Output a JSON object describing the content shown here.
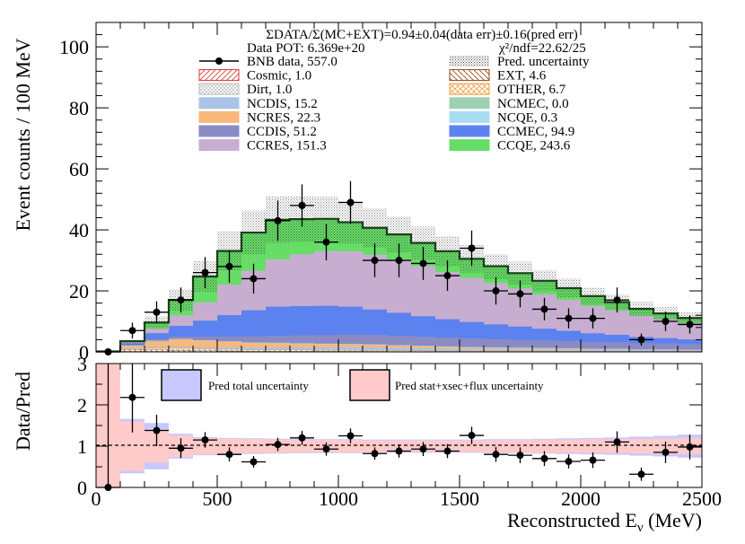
{
  "chart_data": [
    {
      "type": "stacked-histogram",
      "header": {
        "ratio_line": "ΣDATA/Σ(MC+EXT)=0.94±0.04(data err)±0.16(pred err)",
        "pot": "Data POT: 6.369e+20",
        "chi2": "χ²/ndf=22.62/25"
      },
      "ylabel": "Event counts / 100 MeV",
      "ylim": [
        0,
        108
      ],
      "yticks": [
        0,
        20,
        40,
        60,
        80,
        100
      ],
      "xlim": [
        0,
        2500
      ],
      "bin_width": 100,
      "bin_edges": [
        0,
        100,
        200,
        300,
        400,
        500,
        600,
        700,
        800,
        900,
        1000,
        1100,
        1200,
        1300,
        1400,
        1500,
        1600,
        1700,
        1800,
        1900,
        2000,
        2100,
        2200,
        2300,
        2400,
        2500
      ],
      "legend": [
        {
          "key": "data",
          "label": "BNB data, 557.0",
          "color": "#000000"
        },
        {
          "key": "pred_unc",
          "label": "Pred. uncertainty",
          "color": "#888888"
        },
        {
          "key": "cosmic",
          "label": "Cosmic, 1.0",
          "color": "#e03030"
        },
        {
          "key": "ext",
          "label": "EXT, 4.6",
          "color": "#8b4513"
        },
        {
          "key": "dirt",
          "label": "Dirt, 1.0",
          "color": "#bbbbbb"
        },
        {
          "key": "other",
          "label": "OTHER, 6.7",
          "color": "#f0a040"
        },
        {
          "key": "ncdis",
          "label": "NCDIS,  15.2",
          "color": "#a9c4e6"
        },
        {
          "key": "ncmec",
          "label": "NCMEC,  0.0",
          "color": "#9ed0b4"
        },
        {
          "key": "ncres",
          "label": "NCRES, 22.3",
          "color": "#f7b87a"
        },
        {
          "key": "ncqe",
          "label": "NCQE, 0.3",
          "color": "#a8dcf5"
        },
        {
          "key": "ccdis",
          "label": "CCDIS,  51.2",
          "color": "#8a8ac4"
        },
        {
          "key": "ccmec",
          "label": "CCMEC,  94.9",
          "color": "#5b82ef"
        },
        {
          "key": "ccres",
          "label": "CCRES, 151.3",
          "color": "#c7aed0"
        },
        {
          "key": "ccqe",
          "label": "CCQE, 243.6",
          "color": "#66dd66"
        }
      ],
      "stack_order": [
        "cosmic",
        "ext",
        "dirt",
        "other",
        "ncdis",
        "ncres",
        "ncmec",
        "ncqe",
        "ccdis",
        "ccmec",
        "ccres",
        "ccqe"
      ],
      "stack": {
        "cosmic": [
          0.05,
          0.2,
          0.2,
          0.1,
          0.1,
          0.05,
          0.05,
          0.05,
          0.05,
          0.05,
          0.05,
          0.02,
          0.0,
          0.0,
          0.0,
          0.0,
          0.0,
          0.0,
          0.0,
          0.0,
          0.0,
          0.0,
          0.0,
          0.0,
          0.0
        ],
        "ext": [
          0.1,
          0.5,
          0.5,
          0.5,
          0.3,
          0.3,
          0.2,
          0.2,
          0.2,
          0.2,
          0.2,
          0.2,
          0.1,
          0.1,
          0.1,
          0.1,
          0.1,
          0.1,
          0.1,
          0.1,
          0.1,
          0.1,
          0.1,
          0.1,
          0.1
        ],
        "dirt": [
          0.0,
          0.1,
          0.1,
          0.1,
          0.1,
          0.1,
          0.05,
          0.05,
          0.05,
          0.05,
          0.05,
          0.05,
          0.0,
          0.0,
          0.0,
          0.0,
          0.0,
          0.0,
          0.0,
          0.0,
          0.0,
          0.0,
          0.0,
          0.0,
          0.0
        ],
        "other": [
          0.0,
          0.3,
          0.5,
          0.6,
          0.5,
          0.4,
          0.4,
          0.4,
          0.4,
          0.3,
          0.3,
          0.3,
          0.3,
          0.3,
          0.2,
          0.2,
          0.2,
          0.2,
          0.2,
          0.2,
          0.1,
          0.1,
          0.1,
          0.1,
          0.1
        ],
        "ncdis": [
          0.0,
          0.2,
          0.3,
          0.4,
          0.5,
          0.6,
          0.7,
          0.8,
          0.8,
          0.9,
          0.9,
          0.9,
          0.9,
          0.8,
          0.8,
          0.7,
          0.7,
          0.6,
          0.6,
          0.5,
          0.5,
          0.5,
          0.4,
          0.4,
          0.3
        ],
        "ncres": [
          0.0,
          0.8,
          2.0,
          2.5,
          2.3,
          2.0,
          1.7,
          1.5,
          1.3,
          1.2,
          1.1,
          1.0,
          0.9,
          0.8,
          0.7,
          0.6,
          0.5,
          0.5,
          0.4,
          0.4,
          0.3,
          0.3,
          0.2,
          0.2,
          0.2
        ],
        "ncmec": [
          0.0,
          0.0,
          0.0,
          0.0,
          0.0,
          0.0,
          0.0,
          0.0,
          0.0,
          0.0,
          0.0,
          0.0,
          0.0,
          0.0,
          0.0,
          0.0,
          0.0,
          0.0,
          0.0,
          0.0,
          0.0,
          0.0,
          0.0,
          0.0,
          0.0
        ],
        "ncqe": [
          0.0,
          0.02,
          0.03,
          0.03,
          0.03,
          0.02,
          0.02,
          0.02,
          0.02,
          0.01,
          0.01,
          0.01,
          0.01,
          0.01,
          0.01,
          0.01,
          0.01,
          0.0,
          0.0,
          0.0,
          0.0,
          0.0,
          0.0,
          0.0,
          0.0
        ],
        "ccdis": [
          0.0,
          0.2,
          0.5,
          0.8,
          1.2,
          1.6,
          2.0,
          2.3,
          2.6,
          2.8,
          3.0,
          3.1,
          3.1,
          3.0,
          2.9,
          2.8,
          2.7,
          2.6,
          2.5,
          2.4,
          2.3,
          2.2,
          2.1,
          2.0,
          1.9
        ],
        "ccmec": [
          0.0,
          0.5,
          2.0,
          3.5,
          5.2,
          7.0,
          8.5,
          9.5,
          9.6,
          9.6,
          9.2,
          8.3,
          7.5,
          6.7,
          6.0,
          5.4,
          4.8,
          4.3,
          3.8,
          3.3,
          2.8,
          2.4,
          2.0,
          1.7,
          1.5
        ],
        "ccres": [
          0.0,
          0.4,
          1.5,
          3.5,
          6.0,
          10.0,
          13.0,
          15.5,
          17.0,
          18.0,
          18.2,
          18.0,
          17.5,
          16.5,
          15.5,
          14.5,
          13.5,
          12.5,
          11.3,
          10.2,
          9.0,
          8.0,
          7.0,
          6.3,
          5.5
        ],
        "ccqe": [
          0.0,
          0.3,
          2.0,
          5.0,
          8.5,
          11.0,
          12.5,
          13.0,
          11.5,
          10.5,
          9.5,
          8.8,
          8.2,
          7.5,
          6.8,
          6.2,
          5.6,
          5.0,
          4.4,
          3.8,
          3.2,
          2.7,
          2.2,
          1.8,
          1.5
        ]
      },
      "pred_total": [
        0.15,
        3.1,
        9.6,
        17.0,
        24.7,
        33.1,
        39.1,
        43.3,
        43.5,
        43.6,
        42.5,
        40.7,
        38.5,
        35.7,
        33.0,
        30.5,
        27.9,
        25.8,
        23.3,
        20.9,
        18.3,
        16.3,
        14.1,
        12.6,
        11.1
      ],
      "pred_unc": [
        0.1,
        0.8,
        2.0,
        3.5,
        5.0,
        6.4,
        7.2,
        7.6,
        7.4,
        7.2,
        6.9,
        6.4,
        5.9,
        5.4,
        4.9,
        4.5,
        4.1,
        3.8,
        3.4,
        3.1,
        2.8,
        2.5,
        2.3,
        2.1,
        1.9
      ],
      "data": {
        "x": [
          50,
          150,
          250,
          350,
          450,
          550,
          650,
          750,
          850,
          950,
          1050,
          1150,
          1250,
          1350,
          1450,
          1550,
          1650,
          1750,
          1850,
          1950,
          2050,
          2150,
          2250,
          2350,
          2450
        ],
        "y": [
          0,
          7,
          13,
          17,
          26,
          28,
          24,
          43,
          48,
          36,
          49,
          30,
          30,
          29,
          25,
          34,
          20,
          19,
          14,
          11,
          11,
          17,
          4,
          10,
          9
        ],
        "err": [
          0,
          2.6,
          3.6,
          4.1,
          5.1,
          5.3,
          4.9,
          6.6,
          6.9,
          6.0,
          7.0,
          5.5,
          5.5,
          5.4,
          5.0,
          5.8,
          4.5,
          4.4,
          3.7,
          3.3,
          3.3,
          4.1,
          2.0,
          3.2,
          3.0
        ]
      }
    },
    {
      "type": "ratio",
      "ylabel": "Data/Pred",
      "xlabel_main": "Reconstructed E",
      "xlabel_sub": "ν",
      "xlabel_unit": " (MeV)",
      "ylim": [
        0,
        3
      ],
      "yticks": [
        0,
        1,
        2,
        3
      ],
      "xticks": [
        0,
        500,
        1000,
        1500,
        2000,
        2500
      ],
      "legend": [
        {
          "key": "total",
          "label": "Pred total uncertainty",
          "color": "#c8c8ff"
        },
        {
          "key": "stat",
          "label": "Pred stat+xsec+flux uncertainty",
          "color": "#ffcaca"
        }
      ],
      "total_unc": [
        3.0,
        0.66,
        0.56,
        0.3,
        0.22,
        0.2,
        0.19,
        0.18,
        0.17,
        0.17,
        0.17,
        0.16,
        0.16,
        0.16,
        0.16,
        0.16,
        0.17,
        0.17,
        0.18,
        0.19,
        0.2,
        0.21,
        0.23,
        0.25,
        0.28
      ],
      "stat_unc": [
        3.0,
        0.6,
        0.4,
        0.26,
        0.2,
        0.18,
        0.17,
        0.16,
        0.15,
        0.15,
        0.15,
        0.14,
        0.14,
        0.14,
        0.14,
        0.14,
        0.15,
        0.15,
        0.16,
        0.16,
        0.17,
        0.17,
        0.18,
        0.19,
        0.2
      ],
      "ratio": {
        "x": [
          50,
          150,
          250,
          350,
          450,
          550,
          650,
          750,
          850,
          950,
          1050,
          1150,
          1250,
          1350,
          1450,
          1550,
          1650,
          1750,
          1850,
          1950,
          2050,
          2150,
          2250,
          2350,
          2450
        ],
        "y": [
          0,
          2.18,
          1.38,
          0.95,
          1.15,
          0.8,
          0.62,
          1.04,
          1.2,
          0.93,
          1.25,
          0.82,
          0.88,
          0.93,
          0.88,
          1.26,
          0.8,
          0.78,
          0.7,
          0.63,
          0.66,
          1.1,
          0.32,
          0.85,
          0.98
        ],
        "err": [
          0,
          0.85,
          0.38,
          0.24,
          0.19,
          0.17,
          0.14,
          0.16,
          0.17,
          0.16,
          0.18,
          0.15,
          0.16,
          0.17,
          0.17,
          0.21,
          0.18,
          0.19,
          0.18,
          0.17,
          0.19,
          0.26,
          0.16,
          0.26,
          0.3
        ]
      }
    }
  ]
}
